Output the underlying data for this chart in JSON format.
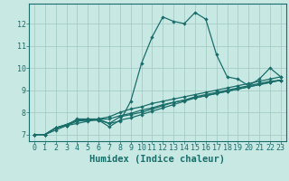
{
  "title": "",
  "xlabel": "Humidex (Indice chaleur)",
  "ylabel": "",
  "xlim": [
    -0.5,
    23.5
  ],
  "ylim": [
    6.7,
    12.9
  ],
  "bg_color": "#c8e8e4",
  "line_color": "#1a6e6a",
  "grid_color": "#a0c8c4",
  "series": [
    [
      7.0,
      7.0,
      7.2,
      7.4,
      7.7,
      7.7,
      7.7,
      7.5,
      7.6,
      8.5,
      10.2,
      11.4,
      12.3,
      12.1,
      12.0,
      12.5,
      12.2,
      10.6,
      9.6,
      9.5,
      9.2,
      9.5,
      10.0,
      9.6
    ],
    [
      7.0,
      7.0,
      7.3,
      7.4,
      7.5,
      7.6,
      7.7,
      7.8,
      8.0,
      8.15,
      8.25,
      8.4,
      8.5,
      8.6,
      8.7,
      8.8,
      8.9,
      9.0,
      9.1,
      9.2,
      9.3,
      9.4,
      9.5,
      9.6
    ],
    [
      7.0,
      7.0,
      7.3,
      7.4,
      7.6,
      7.65,
      7.7,
      7.7,
      7.85,
      7.95,
      8.1,
      8.2,
      8.35,
      8.45,
      8.55,
      8.65,
      8.75,
      8.85,
      8.95,
      9.05,
      9.15,
      9.25,
      9.35,
      9.45
    ],
    [
      7.0,
      7.0,
      7.3,
      7.45,
      7.65,
      7.65,
      7.65,
      7.35,
      7.65,
      7.75,
      7.9,
      8.05,
      8.2,
      8.35,
      8.5,
      8.65,
      8.75,
      8.85,
      8.95,
      9.05,
      9.15,
      9.25,
      9.35,
      9.45
    ],
    [
      7.0,
      7.0,
      7.3,
      7.45,
      7.65,
      7.65,
      7.65,
      7.5,
      7.8,
      7.9,
      8.0,
      8.15,
      8.3,
      8.45,
      8.55,
      8.7,
      8.8,
      8.9,
      9.0,
      9.1,
      9.2,
      9.3,
      9.4,
      9.45
    ]
  ],
  "xticks": [
    0,
    1,
    2,
    3,
    4,
    5,
    6,
    7,
    8,
    9,
    10,
    11,
    12,
    13,
    14,
    15,
    16,
    17,
    18,
    19,
    20,
    21,
    22,
    23
  ],
  "yticks": [
    7,
    8,
    9,
    10,
    11,
    12
  ],
  "tick_fontsize": 6,
  "label_fontsize": 7.5,
  "linewidth": 0.9,
  "markersize": 2.2
}
